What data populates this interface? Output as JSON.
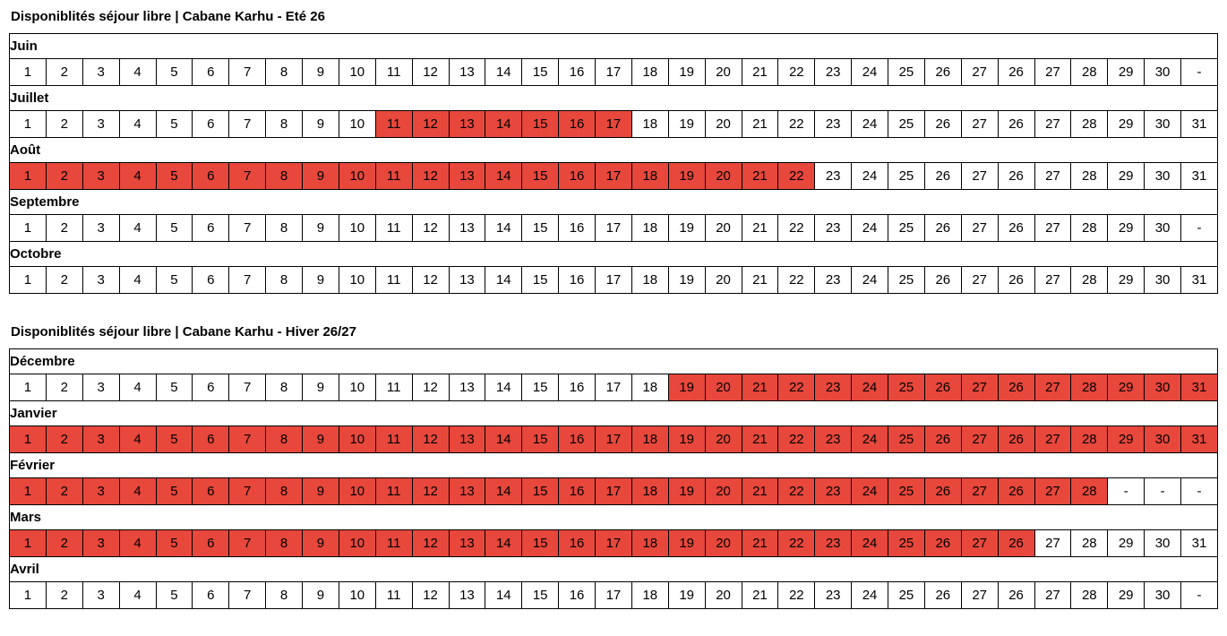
{
  "colors": {
    "booked_bg": "#E8473C",
    "available_bg": "#FFFFFF",
    "border": "#000000",
    "text": "#000000"
  },
  "tables": [
    {
      "title": "Disponiblités séjour libre | Cabane Karhu - Eté 26",
      "months": [
        {
          "name": "Juin",
          "cells": [
            "1",
            "2",
            "3",
            "4",
            "5",
            "6",
            "7",
            "8",
            "9",
            "10",
            "11",
            "12",
            "13",
            "14",
            "15",
            "16",
            "17",
            "18",
            "19",
            "20",
            "21",
            "22",
            "23",
            "24",
            "25",
            "26",
            "27",
            "26",
            "27",
            "28",
            "29",
            "30",
            "-"
          ],
          "booked": []
        },
        {
          "name": "Juillet",
          "cells": [
            "1",
            "2",
            "3",
            "4",
            "5",
            "6",
            "7",
            "8",
            "9",
            "10",
            "11",
            "12",
            "13",
            "14",
            "15",
            "16",
            "17",
            "18",
            "19",
            "20",
            "21",
            "22",
            "23",
            "24",
            "25",
            "26",
            "27",
            "26",
            "27",
            "28",
            "29",
            "30",
            "31"
          ],
          "booked": [
            11,
            17
          ]
        },
        {
          "name": "Août",
          "cells": [
            "1",
            "2",
            "3",
            "4",
            "5",
            "6",
            "7",
            "8",
            "9",
            "10",
            "11",
            "12",
            "13",
            "14",
            "15",
            "16",
            "17",
            "18",
            "19",
            "20",
            "21",
            "22",
            "23",
            "24",
            "25",
            "26",
            "27",
            "26",
            "27",
            "28",
            "29",
            "30",
            "31"
          ],
          "booked": [
            1,
            22
          ]
        },
        {
          "name": "Septembre",
          "cells": [
            "1",
            "2",
            "3",
            "4",
            "5",
            "6",
            "7",
            "8",
            "9",
            "10",
            "11",
            "12",
            "13",
            "14",
            "15",
            "16",
            "17",
            "18",
            "19",
            "20",
            "21",
            "22",
            "23",
            "24",
            "25",
            "26",
            "27",
            "26",
            "27",
            "28",
            "29",
            "30",
            "-"
          ],
          "booked": []
        },
        {
          "name": "Octobre",
          "cells": [
            "1",
            "2",
            "3",
            "4",
            "5",
            "6",
            "7",
            "8",
            "9",
            "10",
            "11",
            "12",
            "13",
            "14",
            "15",
            "16",
            "17",
            "18",
            "19",
            "20",
            "21",
            "22",
            "23",
            "24",
            "25",
            "26",
            "27",
            "26",
            "27",
            "28",
            "29",
            "30",
            "31"
          ],
          "booked": []
        }
      ]
    },
    {
      "title": "Disponiblités séjour libre | Cabane Karhu - Hiver 26/27",
      "months": [
        {
          "name": "Décembre",
          "cells": [
            "1",
            "2",
            "3",
            "4",
            "5",
            "6",
            "7",
            "8",
            "9",
            "10",
            "11",
            "12",
            "13",
            "14",
            "15",
            "16",
            "17",
            "18",
            "19",
            "20",
            "21",
            "22",
            "23",
            "24",
            "25",
            "26",
            "27",
            "26",
            "27",
            "28",
            "29",
            "30",
            "31"
          ],
          "booked": [
            19,
            33
          ]
        },
        {
          "name": "Janvier",
          "cells": [
            "1",
            "2",
            "3",
            "4",
            "5",
            "6",
            "7",
            "8",
            "9",
            "10",
            "11",
            "12",
            "13",
            "14",
            "15",
            "16",
            "17",
            "18",
            "19",
            "20",
            "21",
            "22",
            "23",
            "24",
            "25",
            "26",
            "27",
            "26",
            "27",
            "28",
            "29",
            "30",
            "31"
          ],
          "booked": [
            1,
            33
          ]
        },
        {
          "name": "Février",
          "cells": [
            "1",
            "2",
            "3",
            "4",
            "5",
            "6",
            "7",
            "8",
            "9",
            "10",
            "11",
            "12",
            "13",
            "14",
            "15",
            "16",
            "17",
            "18",
            "19",
            "20",
            "21",
            "22",
            "23",
            "24",
            "25",
            "26",
            "27",
            "26",
            "27",
            "28",
            "-",
            "-",
            "-"
          ],
          "booked": [
            1,
            30
          ]
        },
        {
          "name": "Mars",
          "cells": [
            "1",
            "2",
            "3",
            "4",
            "5",
            "6",
            "7",
            "8",
            "9",
            "10",
            "11",
            "12",
            "13",
            "14",
            "15",
            "16",
            "17",
            "18",
            "19",
            "20",
            "21",
            "22",
            "23",
            "24",
            "25",
            "26",
            "27",
            "26",
            "27",
            "28",
            "29",
            "30",
            "31"
          ],
          "booked": [
            1,
            28
          ]
        },
        {
          "name": "Avril",
          "cells": [
            "1",
            "2",
            "3",
            "4",
            "5",
            "6",
            "7",
            "8",
            "9",
            "10",
            "11",
            "12",
            "13",
            "14",
            "15",
            "16",
            "17",
            "18",
            "19",
            "20",
            "21",
            "22",
            "23",
            "24",
            "25",
            "26",
            "27",
            "26",
            "27",
            "28",
            "29",
            "30",
            "-"
          ],
          "booked": []
        }
      ]
    }
  ]
}
